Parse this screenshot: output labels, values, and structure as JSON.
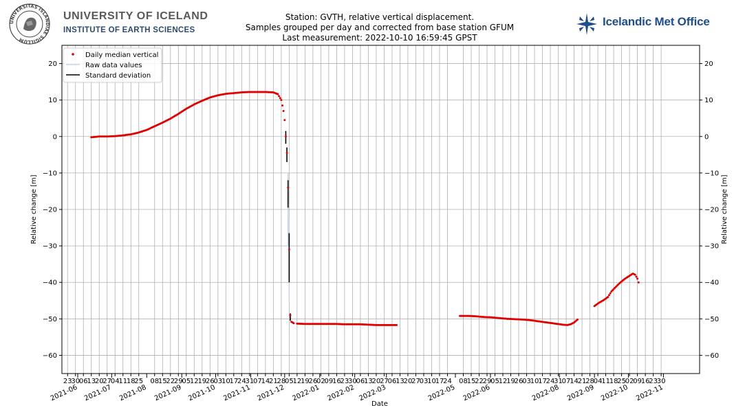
{
  "header": {
    "university_name": "UNIVERSITY OF ICELAND",
    "institute_name": "INSTITUTE OF EARTH SCIENCES",
    "seal_text": "UNIVERSITAS ISLANDIAE SIGILLUM",
    "met_office_name": "Icelandic Met Office",
    "title_lines": [
      "Station: GVTH, relative vertical displacement.",
      "Samples grouped per day and corrected from base station GFUM",
      "Last measurement: 2022-10-10 16:59:45 GPST"
    ]
  },
  "colors": {
    "median_points": "#e00000",
    "raw_data": "#c8d2e6",
    "std_dev": "#000000",
    "grid": "#b0b0b0",
    "met_logo": "#1f4e8c"
  },
  "chart_data": {
    "type": "scatter",
    "xlabel": "Date",
    "ylabel": "Relative change [m]",
    "ylim": [
      -65,
      25
    ],
    "yticks": [
      20,
      10,
      0,
      -10,
      -20,
      -30,
      -40,
      -50,
      -60
    ],
    "xlim": [
      "2021-05-18",
      "2022-12-03"
    ],
    "grid": true,
    "legend": {
      "placement": "top-left",
      "entries": [
        "Daily median vertical",
        "Raw data values",
        "Standard deviation"
      ]
    },
    "month_ticks": [
      {
        "date": "2021-06-01",
        "label": "2021-06"
      },
      {
        "date": "2021-07-01",
        "label": "2021-07"
      },
      {
        "date": "2021-08-01",
        "label": "2021-08"
      },
      {
        "date": "2021-09-01",
        "label": "2021-09"
      },
      {
        "date": "2021-10-01",
        "label": "2021-10"
      },
      {
        "date": "2021-11-01",
        "label": "2021-11"
      },
      {
        "date": "2021-12-01",
        "label": "2021-12"
      },
      {
        "date": "2022-01-01",
        "label": "2022-01"
      },
      {
        "date": "2022-02-01",
        "label": "2022-02"
      },
      {
        "date": "2022-03-01",
        "label": "2022-03"
      },
      {
        "date": "2022-05-01",
        "label": "2022-05"
      },
      {
        "date": "2022-06-01",
        "label": "2022-06"
      },
      {
        "date": "2022-08-01",
        "label": "2022-08"
      },
      {
        "date": "2022-09-01",
        "label": "2022-09"
      },
      {
        "date": "2022-10-01",
        "label": "2022-10"
      },
      {
        "date": "2022-11-01",
        "label": "2022-11"
      }
    ],
    "day_ticks": [
      {
        "date": "2021-05-23",
        "label": "23"
      },
      {
        "date": "2021-05-30",
        "label": "30"
      },
      {
        "date": "2021-06-06",
        "label": "06"
      },
      {
        "date": "2021-06-13",
        "label": "13"
      },
      {
        "date": "2021-06-20",
        "label": "20"
      },
      {
        "date": "2021-06-27",
        "label": "27"
      },
      {
        "date": "2021-07-04",
        "label": "04"
      },
      {
        "date": "2021-07-11",
        "label": "11"
      },
      {
        "date": "2021-07-18",
        "label": "18"
      },
      {
        "date": "2021-07-25",
        "label": "25"
      },
      {
        "date": "2021-08-08",
        "label": "08"
      },
      {
        "date": "2021-08-15",
        "label": "15"
      },
      {
        "date": "2021-08-22",
        "label": "22"
      },
      {
        "date": "2021-08-29",
        "label": "29"
      },
      {
        "date": "2021-09-05",
        "label": "05"
      },
      {
        "date": "2021-09-12",
        "label": "12"
      },
      {
        "date": "2021-09-19",
        "label": "19"
      },
      {
        "date": "2021-09-26",
        "label": "26"
      },
      {
        "date": "2021-10-03",
        "label": "03"
      },
      {
        "date": "2021-10-10",
        "label": "10"
      },
      {
        "date": "2021-10-17",
        "label": "17"
      },
      {
        "date": "2021-10-24",
        "label": "24"
      },
      {
        "date": "2021-10-31",
        "label": "31"
      },
      {
        "date": "2021-11-07",
        "label": "07"
      },
      {
        "date": "2021-11-14",
        "label": "14"
      },
      {
        "date": "2021-11-21",
        "label": "21"
      },
      {
        "date": "2021-11-28",
        "label": "28"
      },
      {
        "date": "2021-12-05",
        "label": "05"
      },
      {
        "date": "2021-12-12",
        "label": "12"
      },
      {
        "date": "2021-12-19",
        "label": "19"
      },
      {
        "date": "2021-12-26",
        "label": "26"
      },
      {
        "date": "2022-01-02",
        "label": "02"
      },
      {
        "date": "2022-01-09",
        "label": "09"
      },
      {
        "date": "2022-01-16",
        "label": "16"
      },
      {
        "date": "2022-01-23",
        "label": "23"
      },
      {
        "date": "2022-01-30",
        "label": "30"
      },
      {
        "date": "2022-02-06",
        "label": "06"
      },
      {
        "date": "2022-02-13",
        "label": "13"
      },
      {
        "date": "2022-02-20",
        "label": "20"
      },
      {
        "date": "2022-02-27",
        "label": "27"
      },
      {
        "date": "2022-03-06",
        "label": "06"
      },
      {
        "date": "2022-03-13",
        "label": "13"
      },
      {
        "date": "2022-03-20",
        "label": "20"
      },
      {
        "date": "2022-03-27",
        "label": "27"
      },
      {
        "date": "2022-04-03",
        "label": "03"
      },
      {
        "date": "2022-04-10",
        "label": "10"
      },
      {
        "date": "2022-04-17",
        "label": "17"
      },
      {
        "date": "2022-04-24",
        "label": "24"
      },
      {
        "date": "2022-05-08",
        "label": "08"
      },
      {
        "date": "2022-05-15",
        "label": "15"
      },
      {
        "date": "2022-05-22",
        "label": "22"
      },
      {
        "date": "2022-05-29",
        "label": "29"
      },
      {
        "date": "2022-06-05",
        "label": "05"
      },
      {
        "date": "2022-06-12",
        "label": "12"
      },
      {
        "date": "2022-06-19",
        "label": "19"
      },
      {
        "date": "2022-06-26",
        "label": "26"
      },
      {
        "date": "2022-07-03",
        "label": "03"
      },
      {
        "date": "2022-07-10",
        "label": "10"
      },
      {
        "date": "2022-07-17",
        "label": "17"
      },
      {
        "date": "2022-07-24",
        "label": "24"
      },
      {
        "date": "2022-07-31",
        "label": "31"
      },
      {
        "date": "2022-08-07",
        "label": "07"
      },
      {
        "date": "2022-08-14",
        "label": "14"
      },
      {
        "date": "2022-08-21",
        "label": "21"
      },
      {
        "date": "2022-08-28",
        "label": "28"
      },
      {
        "date": "2022-09-04",
        "label": "04"
      },
      {
        "date": "2022-09-11",
        "label": "11"
      },
      {
        "date": "2022-09-18",
        "label": "18"
      },
      {
        "date": "2022-09-25",
        "label": "25"
      },
      {
        "date": "2022-10-02",
        "label": "02"
      },
      {
        "date": "2022-10-09",
        "label": "09"
      },
      {
        "date": "2022-10-16",
        "label": "16"
      },
      {
        "date": "2022-10-23",
        "label": "23"
      },
      {
        "date": "2022-10-30",
        "label": "30"
      }
    ],
    "median_segments": [
      {
        "name": "pre-event",
        "points": [
          [
            "2021-06-13",
            -0.2
          ],
          [
            "2021-06-20",
            0.0
          ],
          [
            "2021-06-27",
            0.0
          ],
          [
            "2021-07-04",
            0.1
          ],
          [
            "2021-07-11",
            0.3
          ],
          [
            "2021-07-18",
            0.6
          ],
          [
            "2021-07-25",
            1.1
          ],
          [
            "2021-08-01",
            1.8
          ],
          [
            "2021-08-08",
            2.8
          ],
          [
            "2021-08-15",
            3.8
          ],
          [
            "2021-08-22",
            4.9
          ],
          [
            "2021-08-29",
            6.2
          ],
          [
            "2021-09-05",
            7.6
          ],
          [
            "2021-09-12",
            8.8
          ],
          [
            "2021-09-19",
            9.8
          ],
          [
            "2021-09-26",
            10.7
          ],
          [
            "2021-10-03",
            11.3
          ],
          [
            "2021-10-10",
            11.7
          ],
          [
            "2021-10-17",
            11.9
          ],
          [
            "2021-10-24",
            12.1
          ],
          [
            "2021-10-31",
            12.2
          ],
          [
            "2021-11-07",
            12.2
          ],
          [
            "2021-11-14",
            12.2
          ],
          [
            "2021-11-21",
            12.1
          ],
          [
            "2021-11-25",
            11.6
          ],
          [
            "2021-11-28",
            10.0
          ],
          [
            "2021-11-30",
            7.0
          ],
          [
            "2021-12-01",
            4.5
          ],
          [
            "2021-12-02",
            0.0
          ],
          [
            "2021-12-03",
            -4.5
          ]
        ]
      },
      {
        "name": "collapse",
        "points": [
          [
            "2021-12-04",
            -14.0
          ],
          [
            "2021-12-05",
            -31.0
          ],
          [
            "2021-12-06",
            -49.0
          ],
          [
            "2021-12-07",
            -50.8
          ],
          [
            "2021-12-09",
            -51.2
          ]
        ]
      },
      {
        "name": "post-event-1",
        "points": [
          [
            "2021-12-12",
            -51.3
          ],
          [
            "2021-12-19",
            -51.4
          ],
          [
            "2021-12-26",
            -51.4
          ],
          [
            "2022-01-02",
            -51.4
          ],
          [
            "2022-01-09",
            -51.4
          ],
          [
            "2022-01-16",
            -51.4
          ],
          [
            "2022-01-23",
            -51.5
          ],
          [
            "2022-01-30",
            -51.5
          ],
          [
            "2022-02-06",
            -51.5
          ],
          [
            "2022-02-13",
            -51.6
          ],
          [
            "2022-02-20",
            -51.7
          ],
          [
            "2022-02-27",
            -51.7
          ],
          [
            "2022-03-06",
            -51.7
          ],
          [
            "2022-03-10",
            -51.7
          ]
        ]
      },
      {
        "name": "post-event-2",
        "points": [
          [
            "2022-05-05",
            -49.2
          ],
          [
            "2022-05-12",
            -49.2
          ],
          [
            "2022-05-19",
            -49.3
          ],
          [
            "2022-05-26",
            -49.5
          ],
          [
            "2022-06-02",
            -49.6
          ],
          [
            "2022-06-09",
            -49.8
          ],
          [
            "2022-06-16",
            -50.0
          ],
          [
            "2022-06-23",
            -50.1
          ],
          [
            "2022-06-30",
            -50.2
          ],
          [
            "2022-07-07",
            -50.4
          ],
          [
            "2022-07-14",
            -50.7
          ],
          [
            "2022-07-21",
            -51.0
          ],
          [
            "2022-07-28",
            -51.3
          ],
          [
            "2022-08-04",
            -51.6
          ],
          [
            "2022-08-08",
            -51.7
          ],
          [
            "2022-08-11",
            -51.5
          ],
          [
            "2022-08-14",
            -51.0
          ],
          [
            "2022-08-17",
            -50.2
          ]
        ]
      },
      {
        "name": "post-event-3",
        "points": [
          [
            "2022-09-01",
            -46.5
          ],
          [
            "2022-09-05",
            -45.6
          ],
          [
            "2022-09-09",
            -44.9
          ],
          [
            "2022-09-13",
            -44.0
          ],
          [
            "2022-09-16",
            -42.5
          ],
          [
            "2022-09-20",
            -41.2
          ],
          [
            "2022-09-24",
            -40.0
          ],
          [
            "2022-09-28",
            -39.0
          ],
          [
            "2022-10-02",
            -38.2
          ],
          [
            "2022-10-05",
            -37.6
          ],
          [
            "2022-10-07",
            -37.9
          ],
          [
            "2022-10-09",
            -39.0
          ],
          [
            "2022-10-10",
            -40.0
          ]
        ]
      }
    ],
    "std_dev_bars": [
      {
        "date": "2021-12-02",
        "low": -2.0,
        "high": 1.5
      },
      {
        "date": "2021-12-03",
        "low": -7.0,
        "high": -3.0
      },
      {
        "date": "2021-12-04",
        "low": -19.5,
        "high": -12.0
      },
      {
        "date": "2021-12-05",
        "low": -40.0,
        "high": -26.5
      },
      {
        "date": "2021-12-06",
        "low": -50.5,
        "high": -48.5
      }
    ],
    "raw_data_bars": [
      {
        "date": "2021-12-04",
        "low": -30.0,
        "high": -10.0
      },
      {
        "date": "2021-12-05",
        "low": -45.0,
        "high": -22.0
      }
    ]
  }
}
